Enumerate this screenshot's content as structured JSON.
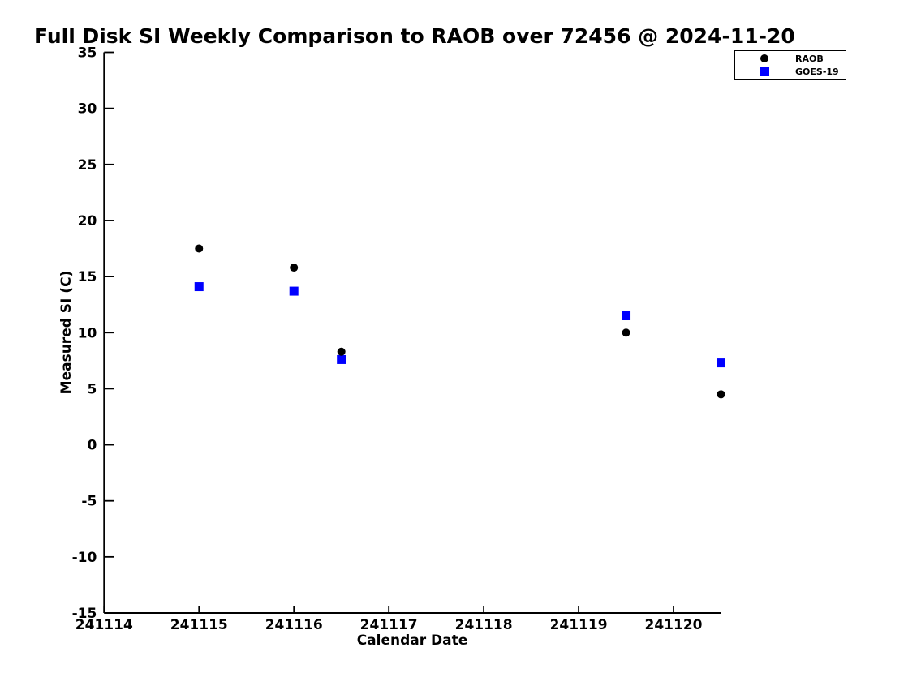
{
  "chart_data": {
    "type": "scatter",
    "title": "Full Disk SI Weekly Comparison to RAOB over 72456 @ 2024-11-20",
    "xlabel": "Calendar Date",
    "ylabel": "Measured SI (C)",
    "xlim": [
      241114,
      241120.5
    ],
    "ylim": [
      -15,
      35
    ],
    "xticks": [
      241114,
      241115,
      241116,
      241117,
      241118,
      241119,
      241120
    ],
    "yticks": [
      -15,
      -10,
      -5,
      0,
      5,
      10,
      15,
      20,
      25,
      30,
      35
    ],
    "x": [
      241115.0,
      241116.0,
      241116.5,
      241119.5,
      241120.5
    ],
    "series": [
      {
        "name": "RAOB",
        "marker": "circle",
        "color": "#000000",
        "values": [
          17.5,
          15.8,
          8.3,
          10.0,
          4.5
        ]
      },
      {
        "name": "GOES-19",
        "marker": "square",
        "color": "#0000ff",
        "values": [
          14.1,
          13.7,
          7.6,
          11.5,
          7.3
        ]
      }
    ],
    "legend_position": "top-right",
    "grid": false,
    "axis_color": "#000000",
    "background_color": "#ffffff"
  }
}
